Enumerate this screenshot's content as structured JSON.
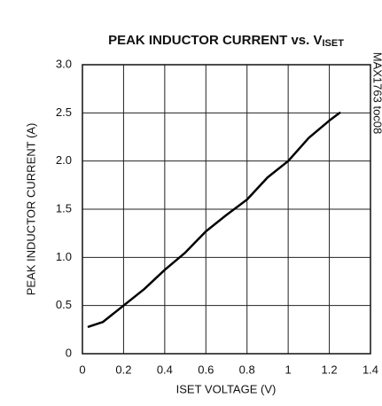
{
  "chart_data": {
    "type": "line",
    "title": "PEAK INDUCTOR CURRENT vs. V",
    "title_subscript": "ISET",
    "annotation": "MAX1763 toc08",
    "x_label": "ISET VOLTAGE (V)",
    "y_label": "PEAK INDUCTOR CURRENT (A)",
    "x": [
      0.03,
      0.1,
      0.2,
      0.3,
      0.4,
      0.5,
      0.6,
      0.7,
      0.8,
      0.9,
      1.0,
      1.1,
      1.2,
      1.25
    ],
    "series": [
      {
        "color": "#000000",
        "values": [
          0.28,
          0.33,
          0.5,
          0.67,
          0.87,
          1.05,
          1.27,
          1.44,
          1.6,
          1.83,
          2.0,
          2.24,
          2.42,
          2.5
        ]
      }
    ],
    "xlim": [
      0,
      1.4
    ],
    "xticks": [
      0,
      0.2,
      0.4,
      0.6,
      0.8,
      1,
      1.2,
      1.4
    ],
    "ylim": [
      0,
      3
    ],
    "yticks": [
      0,
      0.5,
      {
        "value": 1,
        "label": "1.0"
      },
      1.5,
      {
        "value": 2,
        "label": "2.0"
      },
      2.5,
      {
        "value": 3,
        "label": "3.0"
      }
    ],
    "grid": true
  }
}
